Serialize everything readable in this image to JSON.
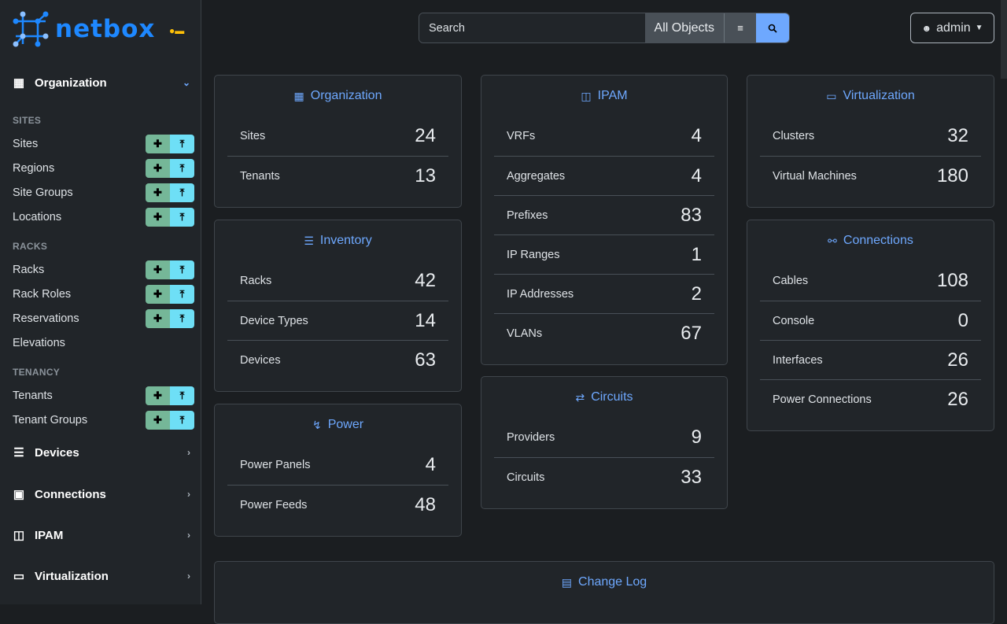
{
  "brand": {
    "name": "netbox"
  },
  "sidebar": {
    "organization": {
      "label": "Organization",
      "sections": [
        {
          "title": "SITES",
          "items": [
            {
              "label": "Sites",
              "buttons": true
            },
            {
              "label": "Regions",
              "buttons": true
            },
            {
              "label": "Site Groups",
              "buttons": true
            },
            {
              "label": "Locations",
              "buttons": true
            }
          ]
        },
        {
          "title": "RACKS",
          "items": [
            {
              "label": "Racks",
              "buttons": true
            },
            {
              "label": "Rack Roles",
              "buttons": true
            },
            {
              "label": "Reservations",
              "buttons": true
            },
            {
              "label": "Elevations",
              "buttons": false
            }
          ]
        },
        {
          "title": "TENANCY",
          "items": [
            {
              "label": "Tenants",
              "buttons": true
            },
            {
              "label": "Tenant Groups",
              "buttons": true
            }
          ]
        }
      ]
    },
    "menus": [
      {
        "label": "Devices",
        "icon": "server-icon"
      },
      {
        "label": "Connections",
        "icon": "ethernet-icon"
      },
      {
        "label": "IPAM",
        "icon": "counter-icon"
      },
      {
        "label": "Virtualization",
        "icon": "monitor-icon"
      }
    ]
  },
  "search": {
    "placeholder": "Search",
    "scope": "All Objects"
  },
  "user": {
    "label": "admin"
  },
  "colors": {
    "accent": "#6ea8fe",
    "add": "#75b798",
    "import": "#6edff6",
    "brand": "#1e88ff"
  },
  "cards": [
    {
      "title": "Organization",
      "icon": "building-icon",
      "rows": [
        {
          "label": "Sites",
          "value": "24"
        },
        {
          "label": "Tenants",
          "value": "13"
        }
      ]
    },
    {
      "title": "Inventory",
      "icon": "server-icon",
      "rows": [
        {
          "label": "Racks",
          "value": "42"
        },
        {
          "label": "Device Types",
          "value": "14"
        },
        {
          "label": "Devices",
          "value": "63"
        }
      ]
    },
    {
      "title": "Power",
      "icon": "flash-icon",
      "rows": [
        {
          "label": "Power Panels",
          "value": "4"
        },
        {
          "label": "Power Feeds",
          "value": "48"
        }
      ]
    },
    {
      "title": "IPAM",
      "icon": "counter-icon",
      "rows": [
        {
          "label": "VRFs",
          "value": "4"
        },
        {
          "label": "Aggregates",
          "value": "4"
        },
        {
          "label": "Prefixes",
          "value": "83"
        },
        {
          "label": "IP Ranges",
          "value": "1"
        },
        {
          "label": "IP Addresses",
          "value": "2"
        },
        {
          "label": "VLANs",
          "value": "67"
        }
      ]
    },
    {
      "title": "Circuits",
      "icon": "transit-icon",
      "rows": [
        {
          "label": "Providers",
          "value": "9"
        },
        {
          "label": "Circuits",
          "value": "33"
        }
      ]
    },
    {
      "title": "Virtualization",
      "icon": "monitor-icon",
      "rows": [
        {
          "label": "Clusters",
          "value": "32"
        },
        {
          "label": "Virtual Machines",
          "value": "180"
        }
      ]
    },
    {
      "title": "Connections",
      "icon": "cable-icon",
      "rows": [
        {
          "label": "Cables",
          "value": "108"
        },
        {
          "label": "Console",
          "value": "0"
        },
        {
          "label": "Interfaces",
          "value": "26"
        },
        {
          "label": "Power Connections",
          "value": "26"
        }
      ]
    },
    {
      "title": "Change Log",
      "icon": "clipboard-clock-icon",
      "rows": []
    }
  ]
}
